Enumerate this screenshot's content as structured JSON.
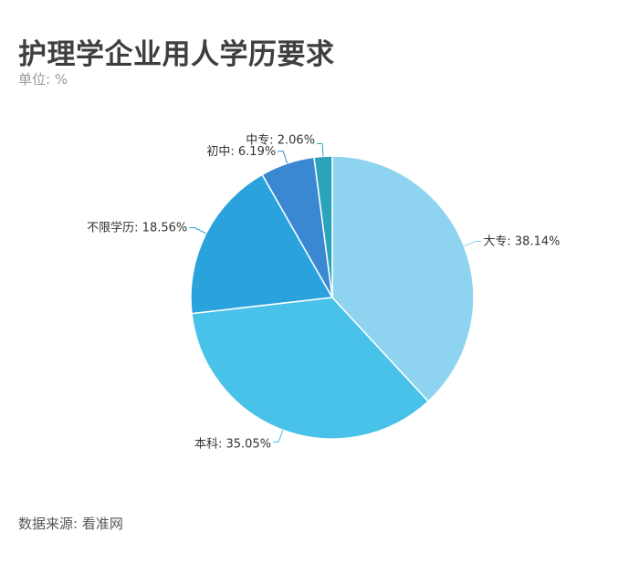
{
  "header": {
    "title": "护理学企业用人学历要求",
    "unit": "单位: %"
  },
  "footer": {
    "source": "数据来源: 看准网"
  },
  "chart_data": {
    "type": "pie",
    "title": "护理学企业用人学历要求",
    "subtitle": "单位: %",
    "labels": [
      "大专",
      "本科",
      "不限学历",
      "初中",
      "中专"
    ],
    "values": [
      38.14,
      35.05,
      18.56,
      6.19,
      2.06
    ],
    "label_texts": [
      "大专: 38.14%",
      "本科: 35.05%",
      "不限学历: 18.56%",
      "初中: 6.19%",
      "中专: 2.06%"
    ],
    "colors": [
      "#8ed4f0",
      "#48c2e8",
      "#2aa3dc",
      "#3a87d2",
      "#2ba3ba"
    ],
    "start_angle": "12 o'clock",
    "direction": "clockwise"
  }
}
